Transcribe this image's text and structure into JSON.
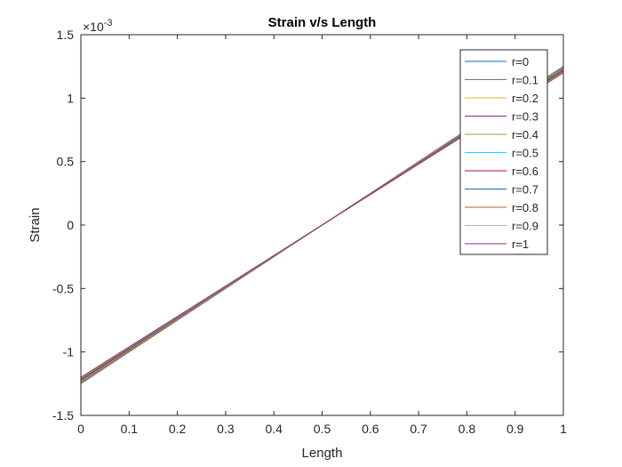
{
  "chart_data": {
    "type": "line",
    "title": "Strain v/s Length",
    "xlabel": "Length",
    "ylabel": "Strain",
    "xlim": [
      0,
      1
    ],
    "ylim": [
      -1.5,
      1.5
    ],
    "y_exponent_label": "×10",
    "y_exponent_power": "-3",
    "xticks": [
      "0",
      "0.1",
      "0.2",
      "0.3",
      "0.4",
      "0.5",
      "0.6",
      "0.7",
      "0.8",
      "0.9",
      "1"
    ],
    "yticks": [
      "-1.5",
      "-1",
      "-0.5",
      "0",
      "0.5",
      "1",
      "1.5"
    ],
    "grid": false,
    "legend_position": "top-right",
    "series": [
      {
        "name": "r=0",
        "x": [
          0,
          1
        ],
        "y": [
          -1.25,
          1.25
        ],
        "color": "#0072BD"
      },
      {
        "name": "r=0.1",
        "x": [
          0,
          1
        ],
        "y": [
          -1.245,
          1.245
        ],
        "color": "#D95319"
      },
      {
        "name": "r=0.2",
        "x": [
          0,
          1
        ],
        "y": [
          -1.24,
          1.24
        ],
        "color": "#EDB120"
      },
      {
        "name": "r=0.3",
        "x": [
          0,
          1
        ],
        "y": [
          -1.235,
          1.235
        ],
        "color": "#7E2F8E"
      },
      {
        "name": "r=0.4",
        "x": [
          0,
          1
        ],
        "y": [
          -1.23,
          1.23
        ],
        "color": "#77AC30"
      },
      {
        "name": "r=0.5",
        "x": [
          0,
          1
        ],
        "y": [
          -1.225,
          1.225
        ],
        "color": "#4DBEEE"
      },
      {
        "name": "r=0.6",
        "x": [
          0,
          1
        ],
        "y": [
          -1.22,
          1.22
        ],
        "color": "#A2142F"
      },
      {
        "name": "r=0.7",
        "x": [
          0,
          1
        ],
        "y": [
          -1.215,
          1.215
        ],
        "color": "#0072BD"
      },
      {
        "name": "r=0.8",
        "x": [
          0,
          1
        ],
        "y": [
          -1.21,
          1.21
        ],
        "color": "#D95319"
      },
      {
        "name": "r=0.9",
        "x": [
          0,
          1
        ],
        "y": [
          -1.205,
          1.205
        ],
        "color": "#EDB120"
      },
      {
        "name": "r=1",
        "x": [
          0,
          1
        ],
        "y": [
          -1.2,
          1.2
        ],
        "color": "#7E2F8E"
      }
    ]
  }
}
